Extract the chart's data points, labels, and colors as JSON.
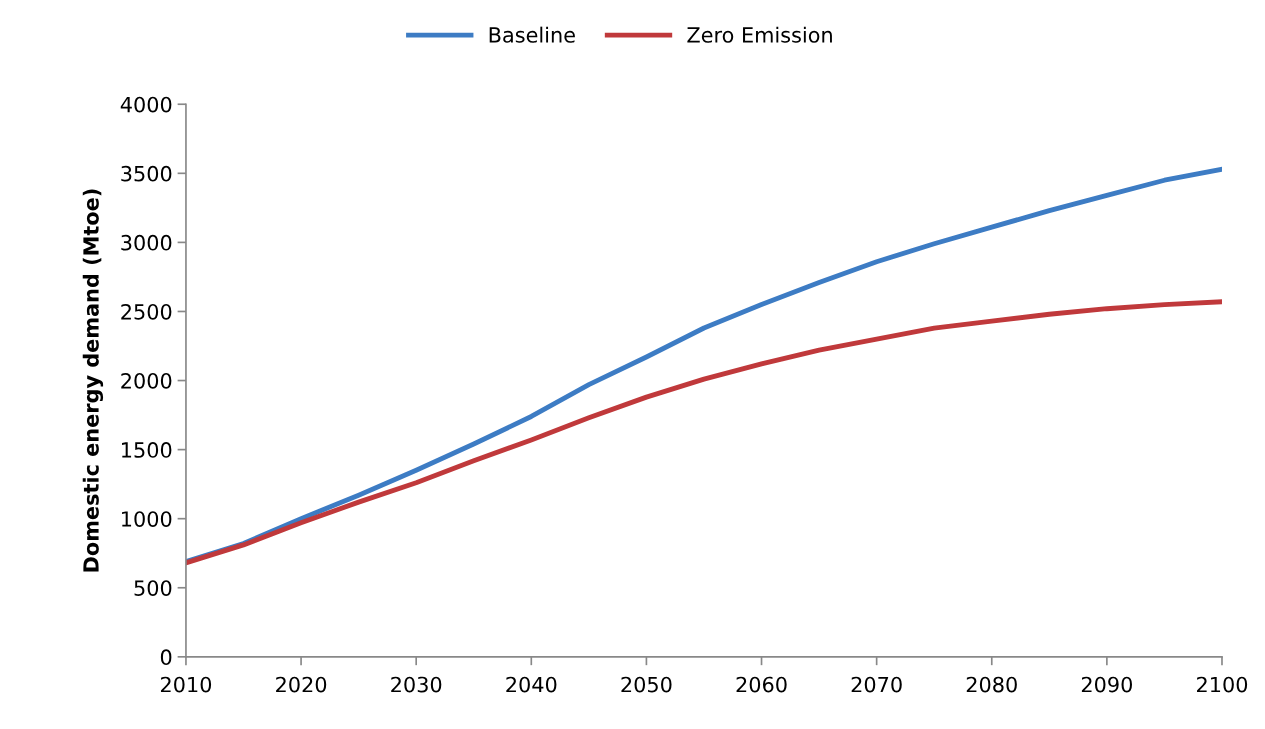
{
  "chart_data": {
    "type": "line",
    "ylabel": "Domestic energy demand (Mtoe)",
    "x": [
      2010,
      2015,
      2020,
      2025,
      2030,
      2035,
      2040,
      2045,
      2050,
      2055,
      2060,
      2065,
      2070,
      2075,
      2080,
      2085,
      2090,
      2095,
      2100
    ],
    "series": [
      {
        "name": "Baseline",
        "color": "#3d7cc4",
        "values": [
          690,
          820,
          1000,
          1170,
          1350,
          1540,
          1740,
          1970,
          2170,
          2380,
          2550,
          2710,
          2860,
          2990,
          3110,
          3230,
          3340,
          3450,
          3530
        ]
      },
      {
        "name": "Zero Emission",
        "color": "#c0393b",
        "values": [
          680,
          810,
          970,
          1120,
          1260,
          1420,
          1570,
          1730,
          1880,
          2010,
          2120,
          2220,
          2300,
          2380,
          2430,
          2480,
          2520,
          2550,
          2570
        ]
      }
    ],
    "xlim": [
      2010,
      2100
    ],
    "xticks": [
      2010,
      2020,
      2030,
      2040,
      2050,
      2060,
      2070,
      2080,
      2090,
      2100
    ],
    "ylim": [
      0,
      4000
    ],
    "yticks": [
      0,
      500,
      1000,
      1500,
      2000,
      2500,
      3000,
      3500,
      4000
    ],
    "grid": false,
    "legend": "top",
    "marker": "none",
    "line_style": "solid"
  }
}
